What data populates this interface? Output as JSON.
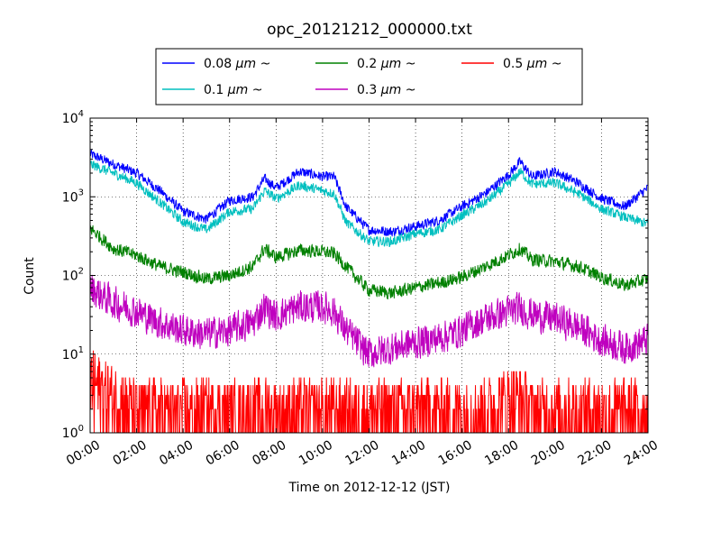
{
  "chart_data": {
    "type": "line",
    "title": "opc_20121212_000000.txt",
    "xlabel": "Time on 2012-12-12 (JST)",
    "ylabel": "Count",
    "x_ticks": [
      "00:00",
      "02:00",
      "04:00",
      "06:00",
      "08:00",
      "10:00",
      "12:00",
      "14:00",
      "16:00",
      "18:00",
      "20:00",
      "22:00",
      "24:00"
    ],
    "y_ticks": [
      {
        "base": "10",
        "exp": "0",
        "value": 1
      },
      {
        "base": "10",
        "exp": "1",
        "value": 10
      },
      {
        "base": "10",
        "exp": "2",
        "value": 100
      },
      {
        "base": "10",
        "exp": "3",
        "value": 1000
      },
      {
        "base": "10",
        "exp": "4",
        "value": 10000
      }
    ],
    "xlim": [
      0,
      24
    ],
    "ylim": [
      1,
      10000
    ],
    "y_scale": "log",
    "grid": true,
    "legend_position": "top-center",
    "x_hours": [
      0,
      1,
      2,
      3,
      4,
      5,
      6,
      7,
      7.5,
      8,
      9,
      10,
      10.5,
      11,
      12,
      13,
      14,
      15,
      16,
      17,
      18,
      18.5,
      19,
      20,
      21,
      22,
      23,
      24
    ],
    "series": [
      {
        "name": "0.08",
        "color": "#0000ff",
        "noise": 0.06,
        "values": [
          3500,
          2600,
          2000,
          1200,
          650,
          520,
          900,
          1000,
          1700,
          1300,
          2100,
          1800,
          1800,
          750,
          380,
          360,
          420,
          500,
          750,
          1100,
          1900,
          2800,
          1800,
          2100,
          1500,
          950,
          750,
          1300
        ]
      },
      {
        "name": "0.1",
        "color": "#00bfbf",
        "noise": 0.06,
        "values": [
          2600,
          2000,
          1500,
          850,
          480,
          380,
          650,
          700,
          1200,
          950,
          1400,
          1200,
          1100,
          480,
          270,
          270,
          340,
          380,
          580,
          850,
          1450,
          2100,
          1450,
          1500,
          1100,
          700,
          550,
          450
        ]
      },
      {
        "name": "0.2",
        "color": "#008000",
        "noise": 0.08,
        "values": [
          400,
          220,
          180,
          130,
          110,
          90,
          100,
          130,
          220,
          170,
          210,
          200,
          190,
          130,
          65,
          60,
          70,
          80,
          95,
          130,
          180,
          220,
          160,
          150,
          130,
          95,
          75,
          90
        ]
      },
      {
        "name": "0.3",
        "color": "#bf00bf",
        "noise": 0.2,
        "values": [
          70,
          45,
          35,
          25,
          20,
          18,
          20,
          25,
          40,
          30,
          40,
          40,
          35,
          20,
          10,
          12,
          14,
          16,
          20,
          28,
          35,
          38,
          32,
          28,
          22,
          15,
          12,
          15
        ]
      },
      {
        "name": "0.5",
        "color": "#ff0000",
        "noise": 0.3,
        "values": [
          5,
          3,
          2,
          2,
          2,
          2,
          2,
          2,
          2,
          2,
          2,
          2,
          2,
          2,
          2,
          2,
          2,
          2,
          2,
          2,
          3,
          3,
          2,
          2,
          2,
          2,
          2,
          2
        ]
      }
    ],
    "legend_suffix": "μm ~"
  }
}
